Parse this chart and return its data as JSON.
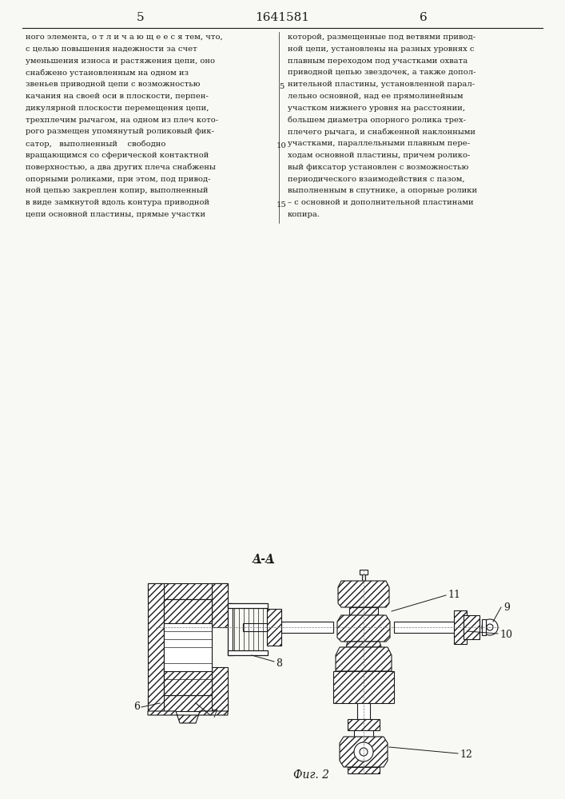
{
  "title": "1641581",
  "page_left": "5",
  "page_right": "6",
  "section_label": "А-А",
  "figure_label": "Фиг. 2",
  "bg_color": "#f8f8f4",
  "line_color": "#1a1a1a",
  "text_color": "#1a1a1a",
  "text_blocks": {
    "left_col": [
      "ного элемента, о т л и ч а ю щ е е с я тем, что,",
      "с целью повышения надежности за счет",
      "уменьшения износа и растяжения цепи, оно",
      "снабжено установленным на одном из",
      "звеньев приводной цепи с возможностью",
      "качания на своей оси в плоскости, перпен-",
      "дикулярной плоскости перемещения цепи,",
      "трехплечим рычагом, на одном из плеч кото-",
      "рого размещен упомянутый роликовый фик-",
      "сатор,   выполненный    свободно",
      "вращающимся со сферической контактной",
      "поверхностью, а два других плеча снабжены",
      "опорными роликами, при этом, под привод-",
      "ной цепью закреплен копир, выполненный",
      "в виде замкнутой вдоль контура приводной",
      "цепи основной пластины, прямые участки"
    ],
    "right_col": [
      "которой, размещенные под ветвями привод-",
      "ной цепи, установлены на разных уровнях с",
      "плавным переходом под участками охвата",
      "приводной цепью звездочек, а также допол-",
      "нительной пластины, установленной парал-",
      "лельно основной, над ее прямолинейным",
      "участком нижнего уровня на расстоянии,",
      "большем диаметра опорного ролика трех-",
      "плечего рычага, и снабженной наклонными",
      "участками, параллельными плавным пере-",
      "ходам основной пластины, причем ролико-",
      "вый фиксатор установлен с возможностью",
      "периодического взаимодействия с пазом,",
      "выполненным в спутнике, а опорные ролики",
      "– с основной и дополнительной пластинами",
      "копира."
    ]
  }
}
